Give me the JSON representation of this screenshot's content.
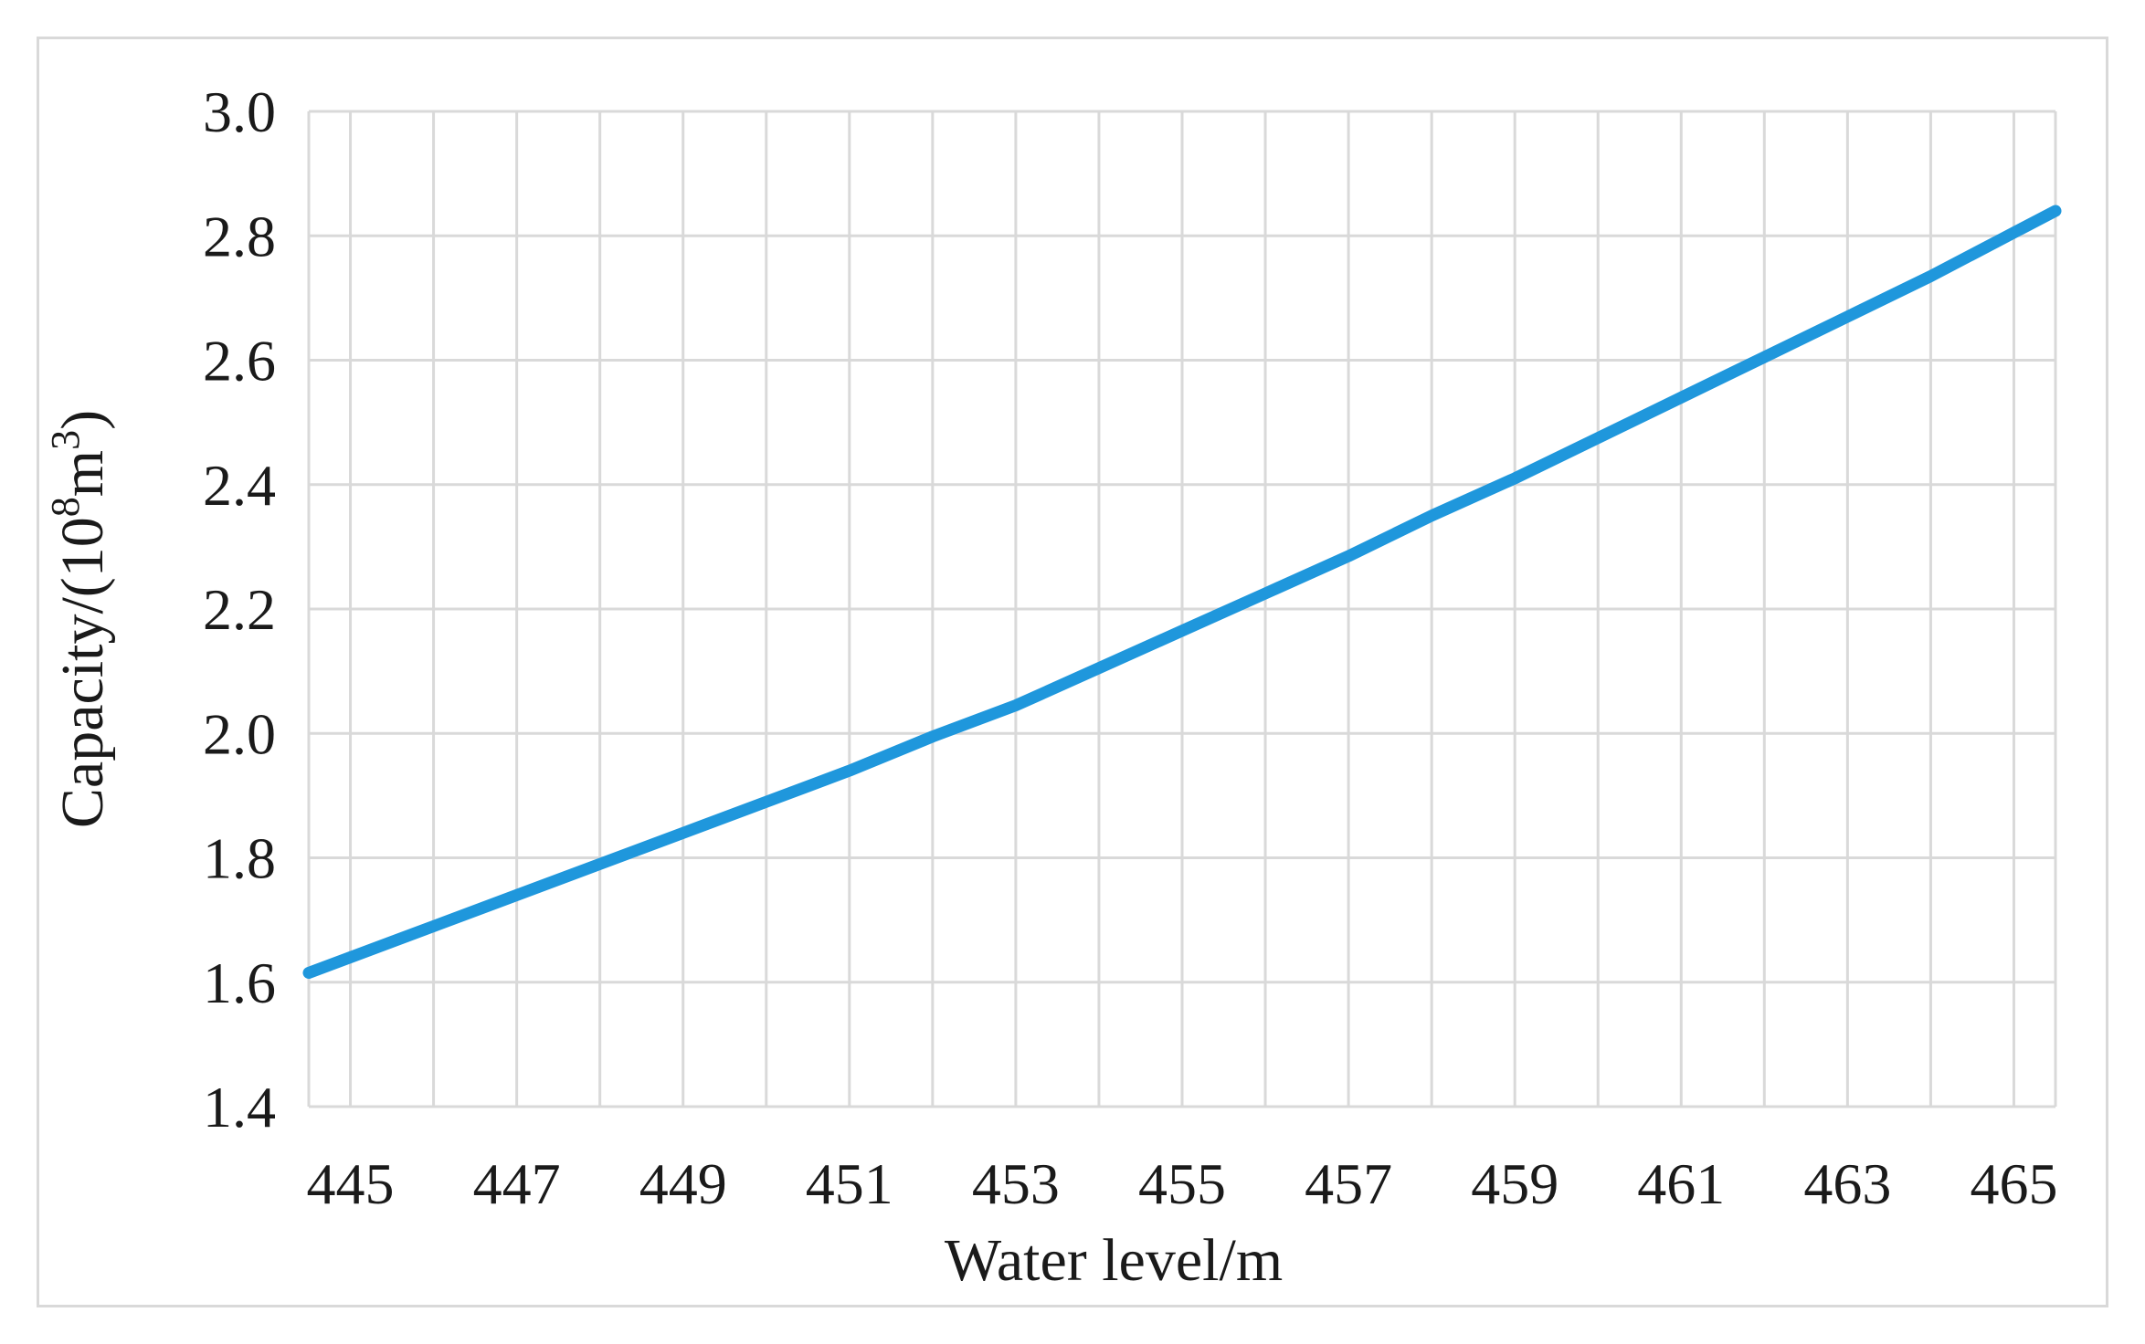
{
  "chart_data": {
    "type": "line",
    "xlabel": "Water level/m",
    "ylabel_parts": {
      "prefix": "Capacity/(10",
      "sup1": "8",
      "mid": "m",
      "sup2": "3",
      "suffix": ")"
    },
    "xlim": [
      444.5,
      465.5
    ],
    "ylim": [
      1.4,
      3.0
    ],
    "x_gridlines": [
      444.5,
      445,
      446,
      447,
      448,
      449,
      450,
      451,
      452,
      453,
      454,
      455,
      456,
      457,
      458,
      459,
      460,
      461,
      462,
      463,
      464,
      465,
      465.5
    ],
    "y_ticks": [
      1.4,
      1.6,
      1.8,
      2.0,
      2.2,
      2.4,
      2.6,
      2.8,
      3.0
    ],
    "y_tick_labels": [
      "1.4",
      "1.6",
      "1.8",
      "2.0",
      "2.2",
      "2.4",
      "2.6",
      "2.8",
      "3.0"
    ],
    "x_ticks": [
      445,
      447,
      449,
      451,
      453,
      455,
      457,
      459,
      461,
      463,
      465
    ],
    "x_tick_labels": [
      "445",
      "447",
      "449",
      "451",
      "453",
      "455",
      "457",
      "459",
      "461",
      "463",
      "465"
    ],
    "grid": true,
    "legend": "none",
    "series": [
      {
        "color": "#1f97dc",
        "x": [
          444.5,
          445,
          446,
          447,
          448,
          449,
          450,
          451,
          452,
          453,
          454,
          455,
          456,
          457,
          458,
          459,
          460,
          461,
          462,
          463,
          464,
          465,
          465.5
        ],
        "y": [
          1.615,
          1.64,
          1.69,
          1.74,
          1.79,
          1.84,
          1.89,
          1.94,
          1.995,
          2.045,
          2.105,
          2.165,
          2.225,
          2.285,
          2.35,
          2.41,
          2.475,
          2.54,
          2.605,
          2.67,
          2.735,
          2.805,
          2.84
        ]
      }
    ]
  }
}
